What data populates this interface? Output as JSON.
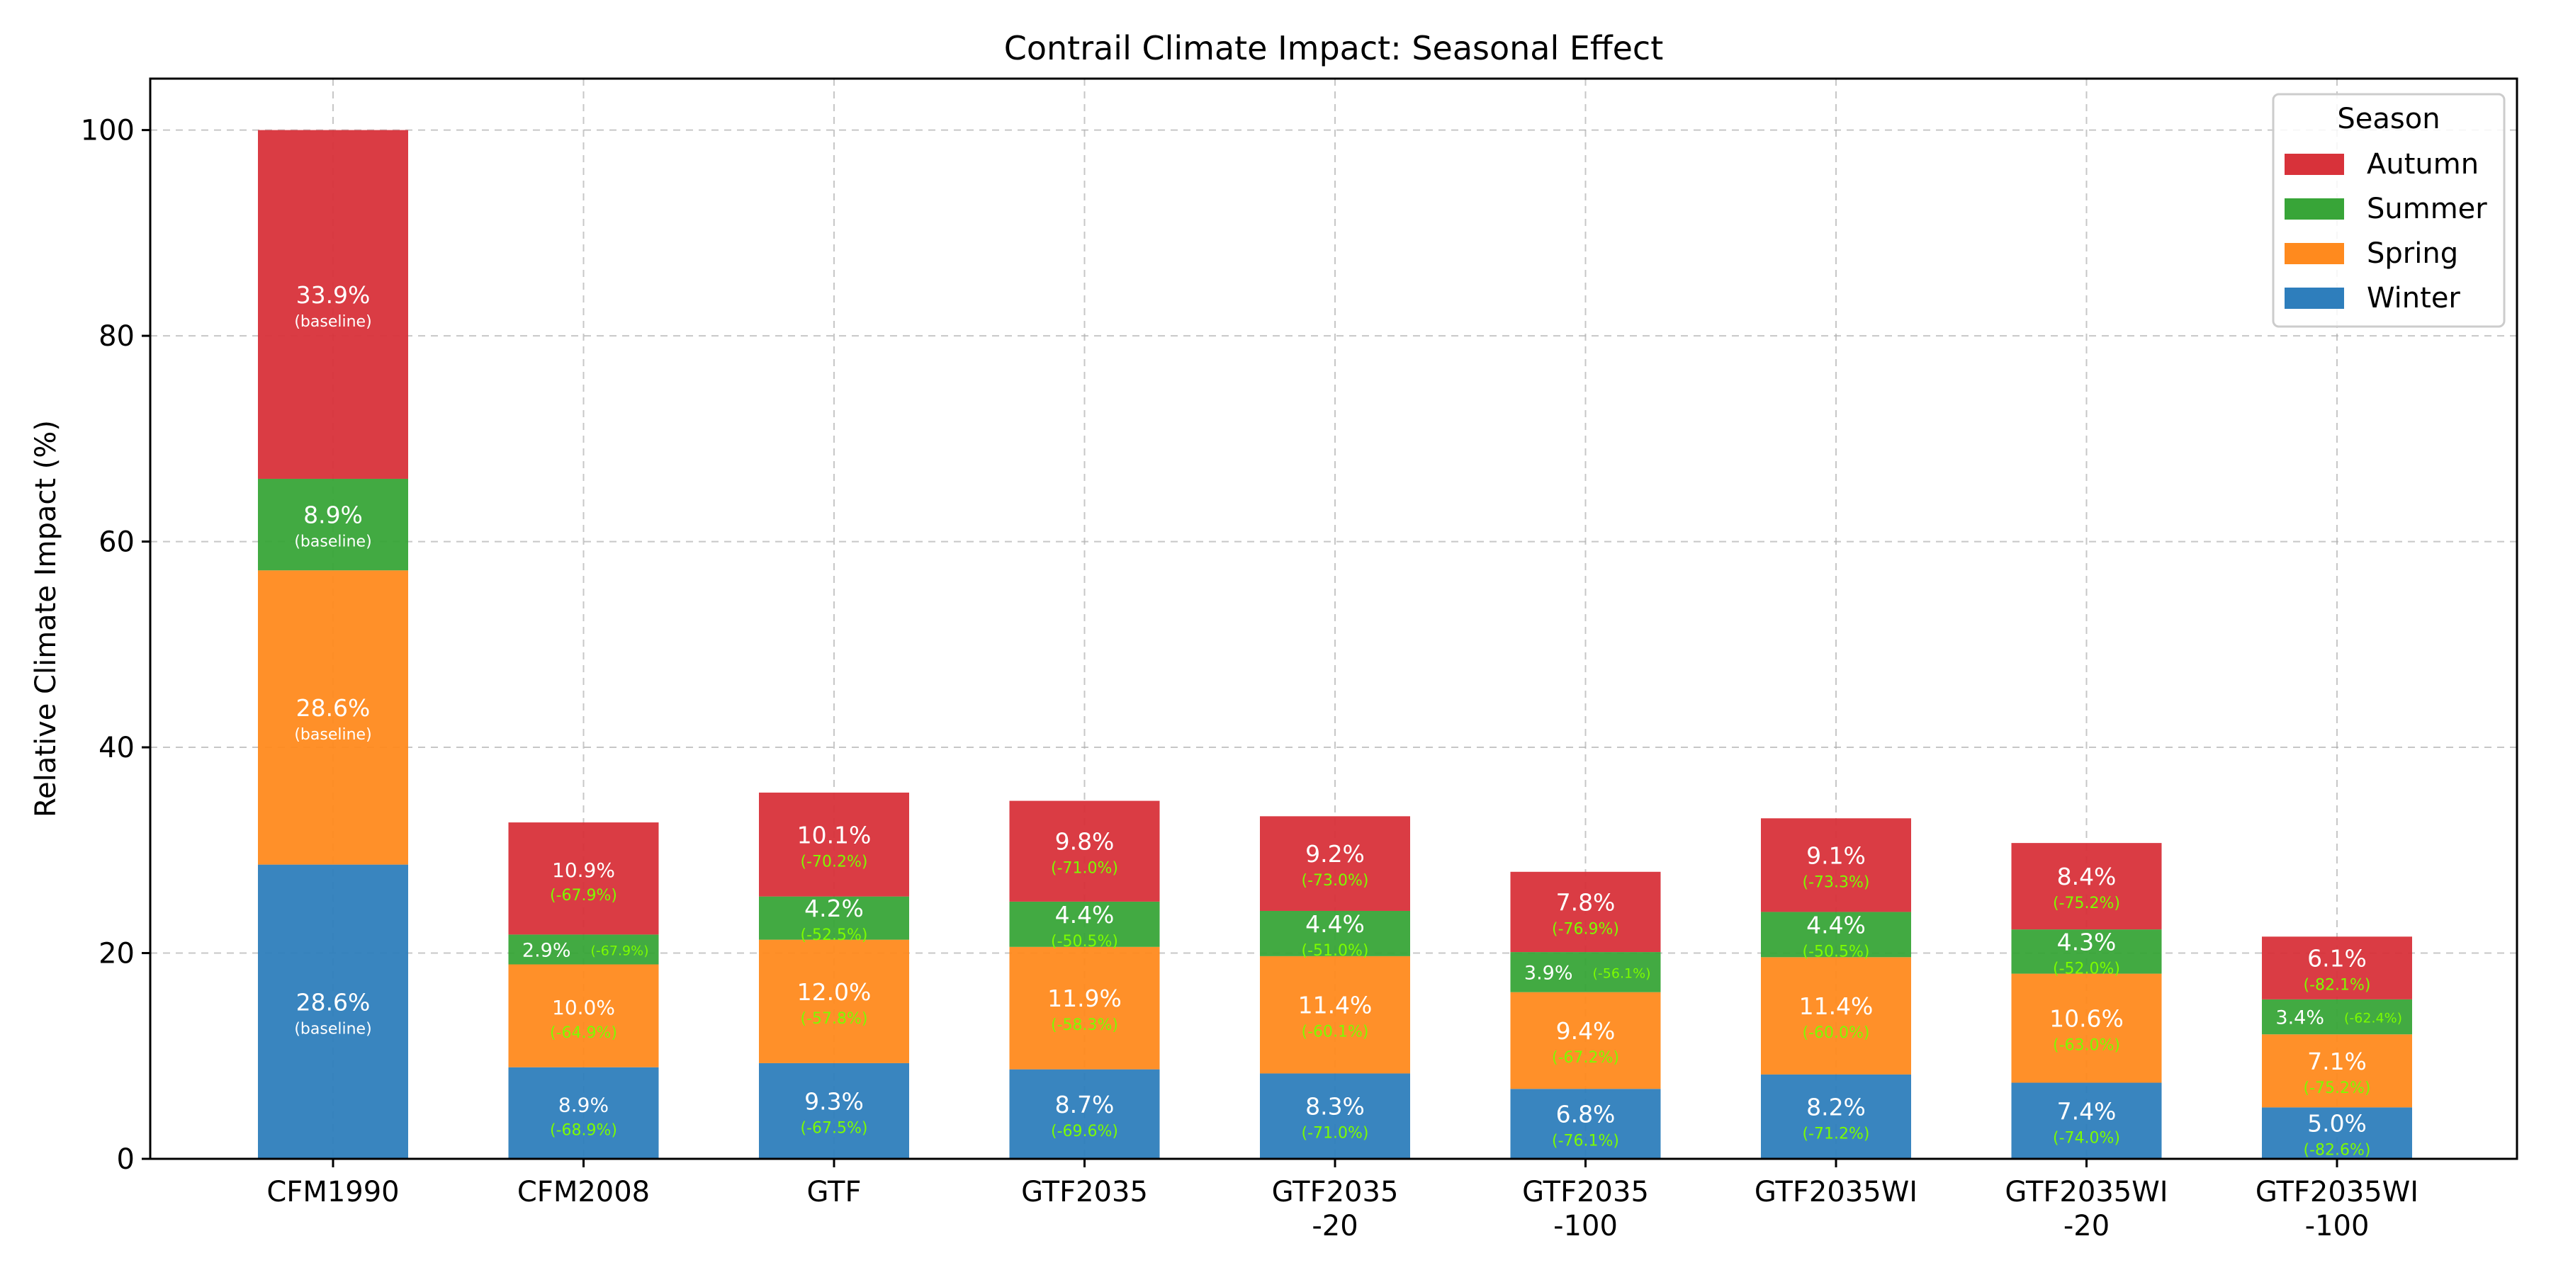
{
  "chart_data": {
    "type": "bar",
    "stacked": true,
    "title": "Contrail Climate Impact: Seasonal Effect",
    "xlabel": "",
    "ylabel": "Relative Climate Impact (%)",
    "ylim": [
      0,
      105
    ],
    "yticks": [
      0,
      20,
      40,
      60,
      80,
      100
    ],
    "grid": true,
    "legend": {
      "title": "Season",
      "position": "top-right"
    },
    "categories": [
      "CFM1990",
      "CFM2008",
      "GTF",
      "GTF2035",
      "GTF2035\n-20",
      "GTF2035\n-100",
      "GTF2035WI",
      "GTF2035WI\n-20",
      "GTF2035WI\n-100"
    ],
    "series": [
      {
        "name": "Winter",
        "color": "#2e7ebc",
        "values": [
          28.6,
          8.9,
          9.3,
          8.7,
          8.3,
          6.8,
          8.2,
          7.4,
          5.0
        ],
        "labels": [
          "28.6%",
          "8.9%",
          "9.3%",
          "8.7%",
          "8.3%",
          "6.8%",
          "8.2%",
          "7.4%",
          "5.0%"
        ],
        "changes": [
          "(baseline)",
          "(-68.9%)",
          "(-67.5%)",
          "(-69.6%)",
          "(-71.0%)",
          "(-76.1%)",
          "(-71.2%)",
          "(-74.0%)",
          "(-82.6%)"
        ]
      },
      {
        "name": "Spring",
        "color": "#ff8a1e",
        "values": [
          28.6,
          10.0,
          12.0,
          11.9,
          11.4,
          9.4,
          11.4,
          10.6,
          7.1
        ],
        "labels": [
          "28.6%",
          "10.0%",
          "12.0%",
          "11.9%",
          "11.4%",
          "9.4%",
          "11.4%",
          "10.6%",
          "7.1%"
        ],
        "changes": [
          "(baseline)",
          "(-64.9%)",
          "(-57.8%)",
          "(-58.3%)",
          "(-60.1%)",
          "(-67.2%)",
          "(-60.0%)",
          "(-63.0%)",
          "(-75.2%)"
        ]
      },
      {
        "name": "Summer",
        "color": "#38a538",
        "values": [
          8.9,
          2.9,
          4.2,
          4.4,
          4.4,
          3.9,
          4.4,
          4.3,
          3.4
        ],
        "labels": [
          "8.9%",
          "2.9%",
          "4.2%",
          "4.4%",
          "4.4%",
          "3.9%",
          "4.4%",
          "4.3%",
          "3.4%"
        ],
        "changes": [
          "(baseline)",
          "(-67.9%)",
          "(-52.5%)",
          "(-50.5%)",
          "(-51.0%)",
          "(-56.1%)",
          "(-50.5%)",
          "(-52.0%)",
          "(-62.4%)"
        ]
      },
      {
        "name": "Autumn",
        "color": "#d8323a",
        "values": [
          33.9,
          10.9,
          10.1,
          9.8,
          9.2,
          7.8,
          9.1,
          8.4,
          6.1
        ],
        "labels": [
          "33.9%",
          "10.9%",
          "10.1%",
          "9.8%",
          "9.2%",
          "7.8%",
          "9.1%",
          "8.4%",
          "6.1%"
        ],
        "changes": [
          "(baseline)",
          "(-67.9%)",
          "(-70.2%)",
          "(-71.0%)",
          "(-73.0%)",
          "(-76.9%)",
          "(-73.3%)",
          "(-75.2%)",
          "(-82.1%)"
        ]
      }
    ]
  }
}
